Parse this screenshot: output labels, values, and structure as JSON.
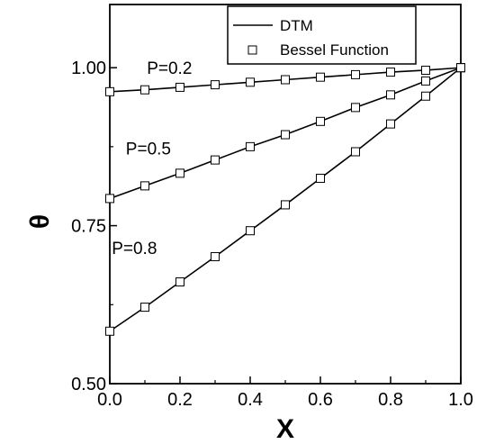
{
  "chart_data": {
    "type": "line",
    "xlabel": "X",
    "ylabel": "θ",
    "xlim": [
      0.0,
      1.0
    ],
    "ylim": [
      0.5,
      1.1
    ],
    "x_ticks": [
      "0.0",
      "0.2",
      "0.4",
      "0.6",
      "0.8",
      "1.0"
    ],
    "y_ticks": [
      "0.50",
      "0.75",
      "1.00"
    ],
    "grid": false,
    "legend_position": "top-right",
    "legend": [
      {
        "label": "DTM",
        "style": "solid-line"
      },
      {
        "label": "Bessel Function",
        "style": "open-square-marker"
      }
    ],
    "x": [
      0.0,
      0.1,
      0.2,
      0.3,
      0.4,
      0.5,
      0.6,
      0.7,
      0.8,
      0.9,
      1.0
    ],
    "series": [
      {
        "annotation": "P=0.2",
        "y": [
          0.962,
          0.965,
          0.969,
          0.973,
          0.977,
          0.981,
          0.985,
          0.989,
          0.993,
          0.996,
          1.0
        ]
      },
      {
        "annotation": "P=0.5",
        "y": [
          0.793,
          0.813,
          0.833,
          0.854,
          0.875,
          0.894,
          0.915,
          0.937,
          0.957,
          0.979,
          1.0
        ]
      },
      {
        "annotation": "P=0.8",
        "y": [
          0.583,
          0.621,
          0.661,
          0.701,
          0.742,
          0.783,
          0.825,
          0.867,
          0.911,
          0.955,
          1.0
        ]
      }
    ],
    "annotations": [
      {
        "text": "P=0.2",
        "x": 0.17,
        "y": 1.0
      },
      {
        "text": "P=0.5",
        "x": 0.11,
        "y": 0.873
      },
      {
        "text": "P=0.8",
        "x": 0.07,
        "y": 0.715
      }
    ]
  }
}
